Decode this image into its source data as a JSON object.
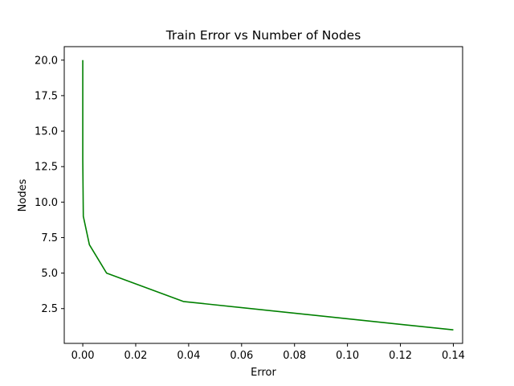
{
  "chart_data": {
    "type": "line",
    "title": "Train Error vs Number of Nodes",
    "xlabel": "Error",
    "ylabel": "Nodes",
    "xlim": [
      -0.007,
      0.1435
    ],
    "ylim": [
      0.05,
      20.95
    ],
    "xticks": [
      0.0,
      0.02,
      0.04,
      0.06,
      0.08,
      0.1,
      0.12,
      0.14
    ],
    "xtick_labels": [
      "0.00",
      "0.02",
      "0.04",
      "0.06",
      "0.08",
      "0.10",
      "0.12",
      "0.14"
    ],
    "yticks": [
      2.5,
      5.0,
      7.5,
      10.0,
      12.5,
      15.0,
      17.5,
      20.0
    ],
    "ytick_labels": [
      "2.5",
      "5.0",
      "7.5",
      "10.0",
      "12.5",
      "15.0",
      "17.5",
      "20.0"
    ],
    "grid": false,
    "series": [
      {
        "color": "#008000",
        "x": [
          0.14,
          0.038,
          0.009,
          0.0025,
          0.0002,
          0.0001,
          0.0,
          0.0,
          0.0,
          0.0
        ],
        "y": [
          1,
          3,
          5,
          7,
          9,
          11,
          13,
          15,
          17,
          20
        ]
      }
    ]
  }
}
